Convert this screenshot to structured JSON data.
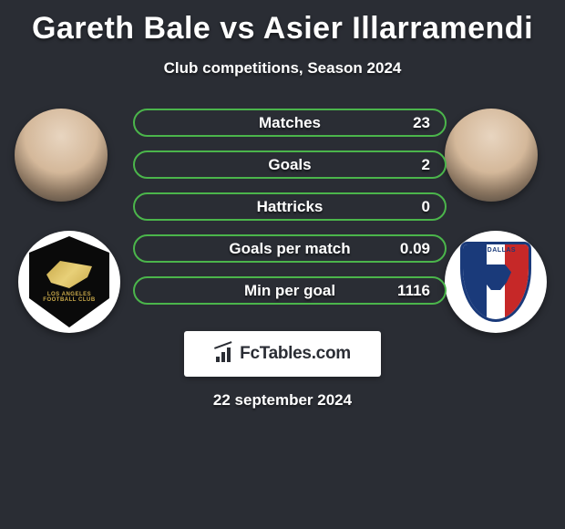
{
  "title": "Gareth Bale vs Asier Illarramendi",
  "subtitle": "Club competitions, Season 2024",
  "date": "22 september 2024",
  "brand": "FcTables.com",
  "colors": {
    "border": "#4bb54b",
    "background": "#2a2d34",
    "text": "#ffffff"
  },
  "player_left": {
    "name": "Gareth Bale",
    "club": "Los Angeles FC"
  },
  "player_right": {
    "name": "Asier Illarramendi",
    "club": "FC Dallas"
  },
  "stats": [
    {
      "label": "Matches",
      "value": "23"
    },
    {
      "label": "Goals",
      "value": "2"
    },
    {
      "label": "Hattricks",
      "value": "0"
    },
    {
      "label": "Goals per match",
      "value": "0.09"
    },
    {
      "label": "Min per goal",
      "value": "1116"
    }
  ]
}
